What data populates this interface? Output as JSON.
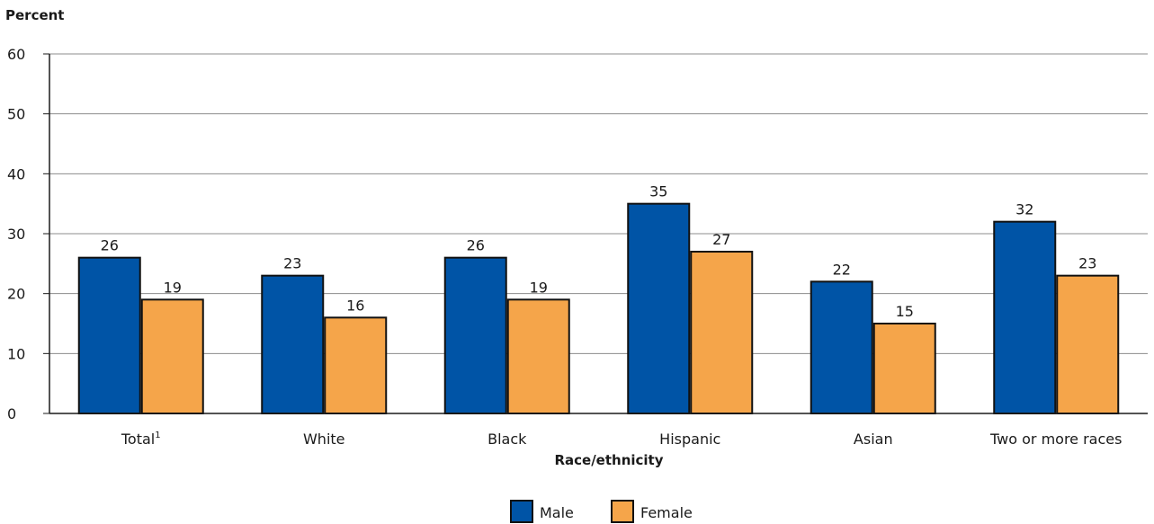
{
  "chart_data": {
    "type": "bar",
    "ylabel": "Percent",
    "xlabel": "Race/ethnicity",
    "ylim": [
      0,
      60
    ],
    "yticks": [
      0,
      10,
      20,
      30,
      40,
      50,
      60
    ],
    "grid": true,
    "legend_position": "bottom-center",
    "categories": [
      "Total",
      "White",
      "Black",
      "Hispanic",
      "Asian",
      "Two or more races"
    ],
    "category_superscripts": [
      "1",
      "",
      "",
      "",
      "",
      ""
    ],
    "series": [
      {
        "name": "Male",
        "color": "#0054a6",
        "values": [
          26,
          23,
          26,
          35,
          22,
          32
        ],
        "labels": [
          "26",
          "23",
          "26",
          "35",
          "22",
          "32"
        ]
      },
      {
        "name": "Female",
        "color": "#f5a54a",
        "values": [
          19,
          16,
          19,
          27,
          15,
          23
        ],
        "labels": [
          "19",
          "16",
          "19",
          "27",
          "15",
          "23"
        ]
      }
    ]
  }
}
